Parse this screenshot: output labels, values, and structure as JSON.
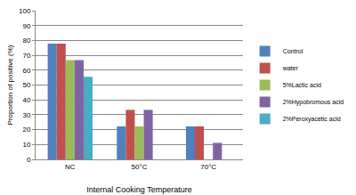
{
  "chart_data": {
    "type": "bar",
    "x_label": "Internal Cooking Temperature",
    "y_label": "Proportion of positive (%)",
    "categories": [
      "NC",
      "50°C",
      "70°C"
    ],
    "series": [
      {
        "name": "Control",
        "color": "#4F81BD",
        "values": [
          77.8,
          22.2,
          22.2
        ]
      },
      {
        "name": "water",
        "color": "#C0504D",
        "values": [
          77.8,
          33.3,
          22.2
        ]
      },
      {
        "name": "5%Lactic acid",
        "color": "#9BBB59",
        "values": [
          66.7,
          22.2,
          0
        ]
      },
      {
        "name": "2%Hypobromous acid",
        "color": "#8064A2",
        "values": [
          66.7,
          33.3,
          11.1
        ]
      },
      {
        "name": "2%Peroxyacetic acid",
        "color": "#4BACC6",
        "values": [
          55.6,
          0,
          0
        ]
      }
    ],
    "ylim": [
      0,
      100
    ],
    "yticks": [
      0,
      10,
      20,
      30,
      40,
      50,
      60,
      70,
      80,
      90,
      100
    ],
    "grid": true,
    "legend": "right"
  }
}
